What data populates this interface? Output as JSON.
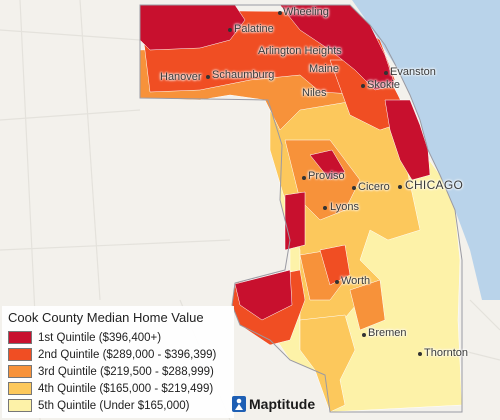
{
  "map": {
    "colors": {
      "water": "#b9d3ea",
      "land": "#f3f1ec",
      "road": "#e4e2dc",
      "county_border": "#9a9aa3"
    },
    "places": [
      {
        "name": "Wheeling"
      },
      {
        "name": "Palatine"
      },
      {
        "name": "Arlington Heights"
      },
      {
        "name": "Hanover"
      },
      {
        "name": "Schaumburg"
      },
      {
        "name": "Maine"
      },
      {
        "name": "Evanston"
      },
      {
        "name": "Niles"
      },
      {
        "name": "Skokie"
      },
      {
        "name": "Proviso"
      },
      {
        "name": "Cicero"
      },
      {
        "name": "CHICAGO"
      },
      {
        "name": "Lyons"
      },
      {
        "name": "Worth"
      },
      {
        "name": "Bremen"
      },
      {
        "name": "Thornton"
      }
    ]
  },
  "legend": {
    "title": "Cook County Median Home Value",
    "items": [
      {
        "label": "1st Quintile ($396,400+)",
        "color": "#c8102e"
      },
      {
        "label": "2nd Quintile ($289,000 - $396,399)",
        "color": "#f04e23"
      },
      {
        "label": "3rd Quintile ($219,500 - $288,999)",
        "color": "#f7923a"
      },
      {
        "label": "4th Quintile ($165,000 - $219,499)",
        "color": "#fcc85c"
      },
      {
        "label": "5th Quintile (Under $165,000)",
        "color": "#fdf2a8"
      }
    ]
  },
  "brand": {
    "name": "Maptitude",
    "icon": "maptitude-logo-icon",
    "color": "#1e5fb4"
  }
}
